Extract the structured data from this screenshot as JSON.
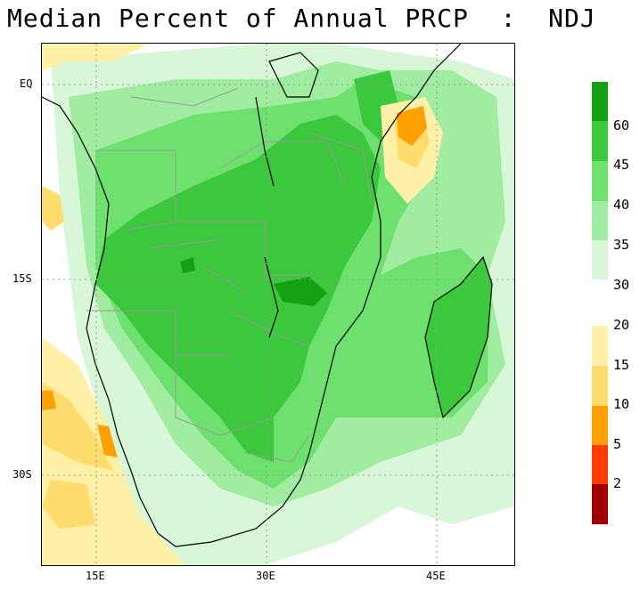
{
  "title": "Median Percent of Annual PRCP  :  NDJ",
  "map": {
    "lat_labels": [
      "EQ",
      "15S",
      "30S"
    ],
    "lon_labels": [
      "15E",
      "30E",
      "45E"
    ]
  },
  "legend": {
    "wet": [
      {
        "label": "60",
        "color": "#13a013"
      },
      {
        "label": "45",
        "color": "#3cc83c"
      },
      {
        "label": "40",
        "color": "#6ee06e"
      },
      {
        "label": "35",
        "color": "#a0eca0"
      },
      {
        "label": "30",
        "color": "#d8f7d8"
      }
    ],
    "dry": [
      {
        "label": "20",
        "color": "#fff0a8"
      },
      {
        "label": "15",
        "color": "#ffdc6e"
      },
      {
        "label": "10",
        "color": "#ffa000"
      },
      {
        "label": "5",
        "color": "#ff3c00"
      },
      {
        "label": "2",
        "color": "#a00000"
      }
    ]
  },
  "colors": {
    "frame": "#000000",
    "grid": "#999999",
    "borders": "#999999"
  }
}
